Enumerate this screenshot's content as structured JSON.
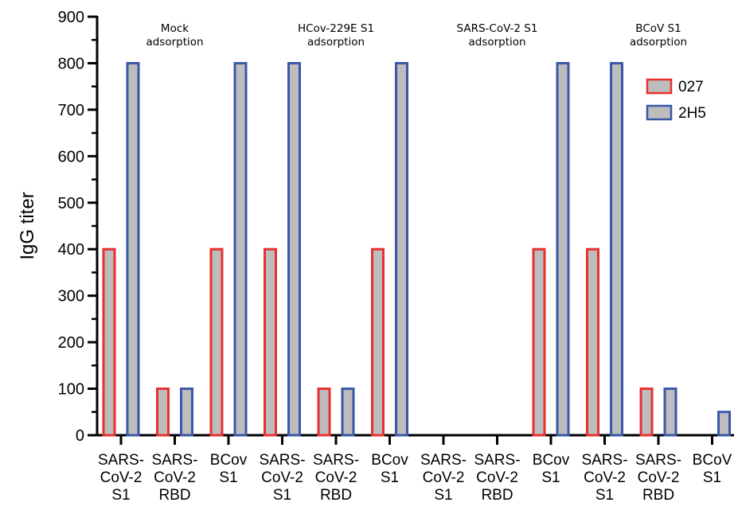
{
  "chart_data": {
    "type": "bar",
    "title": "",
    "xlabel": "",
    "ylabel": "IgG titer",
    "ylim": [
      0,
      900
    ],
    "yticks": [
      0,
      100,
      200,
      300,
      400,
      500,
      600,
      700,
      800,
      900
    ],
    "grid": false,
    "legend_position": "top-right",
    "groups": [
      {
        "label": [
          "Mock",
          "adsorption"
        ]
      },
      {
        "label": [
          "HCov-229E S1",
          "adsorption"
        ]
      },
      {
        "label": [
          "SARS-CoV-2 S1",
          "adsorption"
        ]
      },
      {
        "label": [
          "BCoV S1",
          "adsorption"
        ]
      }
    ],
    "categories": [
      [
        "SARS-",
        "CoV-2",
        "S1"
      ],
      [
        "SARS-",
        "CoV-2",
        "RBD"
      ],
      [
        "BCov",
        "S1"
      ],
      [
        "SARS-",
        "CoV-2",
        "S1"
      ],
      [
        "SARS-",
        "CoV-2",
        "RBD"
      ],
      [
        "BCov",
        "S1"
      ],
      [
        "SARS-",
        "CoV-2",
        "S1"
      ],
      [
        "SARS-",
        "CoV-2",
        "RBD"
      ],
      [
        "BCov",
        "S1"
      ],
      [
        "SARS-",
        "CoV-2",
        "S1"
      ],
      [
        "SARS-",
        "CoV-2",
        "RBD"
      ],
      [
        "BCoV",
        "S1"
      ]
    ],
    "series": [
      {
        "name": "027",
        "color": "#e8312f",
        "fill": "#bdbdbd",
        "values": [
          400,
          100,
          400,
          400,
          100,
          400,
          0,
          0,
          400,
          400,
          100,
          0
        ]
      },
      {
        "name": "2H5",
        "color": "#3a57a8",
        "fill": "#bdbdbd",
        "values": [
          800,
          100,
          800,
          800,
          100,
          800,
          0,
          0,
          800,
          800,
          100,
          50
        ]
      }
    ]
  }
}
